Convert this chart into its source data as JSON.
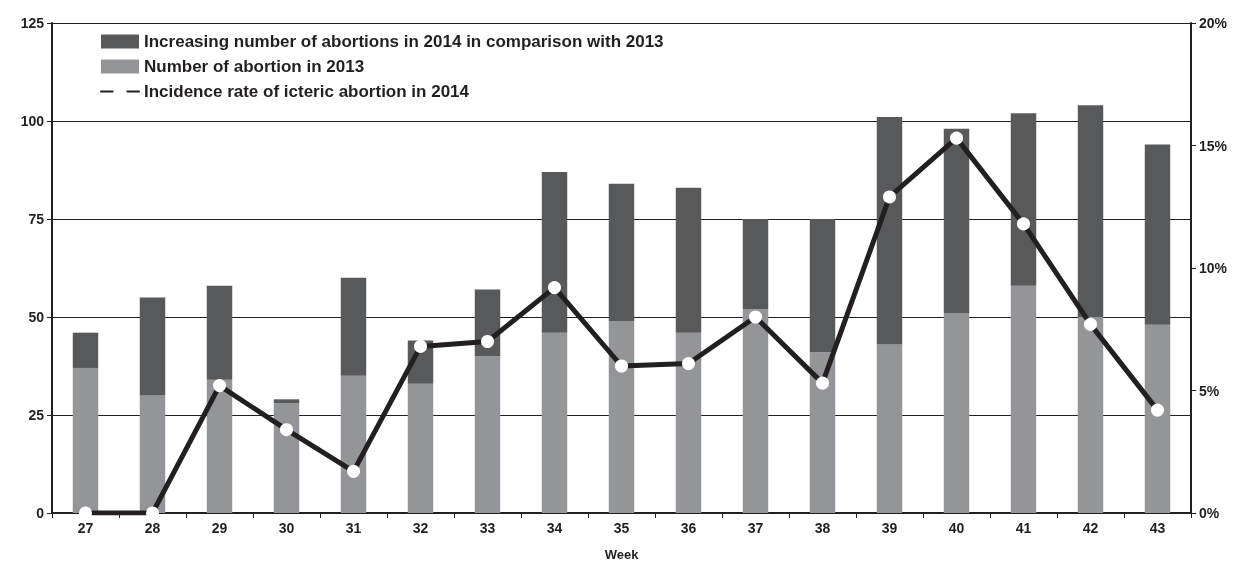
{
  "chart_data": {
    "type": "bar",
    "stacked": true,
    "xlabel": "Week",
    "categories": [
      "27",
      "28",
      "29",
      "30",
      "31",
      "32",
      "33",
      "34",
      "35",
      "36",
      "37",
      "38",
      "39",
      "40",
      "41",
      "42",
      "43"
    ],
    "series": [
      {
        "name": "Number of abortion in 2013",
        "color": "#939598",
        "values": [
          37,
          30,
          34,
          28,
          35,
          33,
          40,
          46,
          49,
          46,
          52,
          41,
          43,
          51,
          58,
          50,
          48
        ]
      },
      {
        "name": "Increasing number of abortions in 2014 in comparison with 2013",
        "color": "#58595b",
        "values": [
          9,
          25,
          24,
          1,
          25,
          11,
          17,
          41,
          35,
          37,
          23,
          34,
          58,
          47,
          44,
          54,
          46
        ]
      },
      {
        "name": "Incidence rate of icteric abortion in 2014",
        "type": "line",
        "axis": "y2",
        "color": "#231f20",
        "marker": "circle",
        "values": [
          0,
          0,
          5.2,
          3.4,
          1.7,
          6.8,
          7.0,
          9.2,
          6.0,
          6.1,
          8.0,
          5.3,
          12.9,
          15.3,
          11.8,
          7.7,
          4.2
        ]
      }
    ],
    "ylim": [
      0,
      125
    ],
    "yticks": [
      0,
      25,
      50,
      75,
      100,
      125
    ],
    "y2lim": [
      0,
      20
    ],
    "y2ticks": [
      {
        "value": 0,
        "label": "0%"
      },
      {
        "value": 5,
        "label": "5%"
      },
      {
        "value": 10,
        "label": "10%"
      },
      {
        "value": 15,
        "label": "15%"
      },
      {
        "value": 20,
        "label": "20%"
      }
    ],
    "grid": "y",
    "legend": "top left"
  }
}
